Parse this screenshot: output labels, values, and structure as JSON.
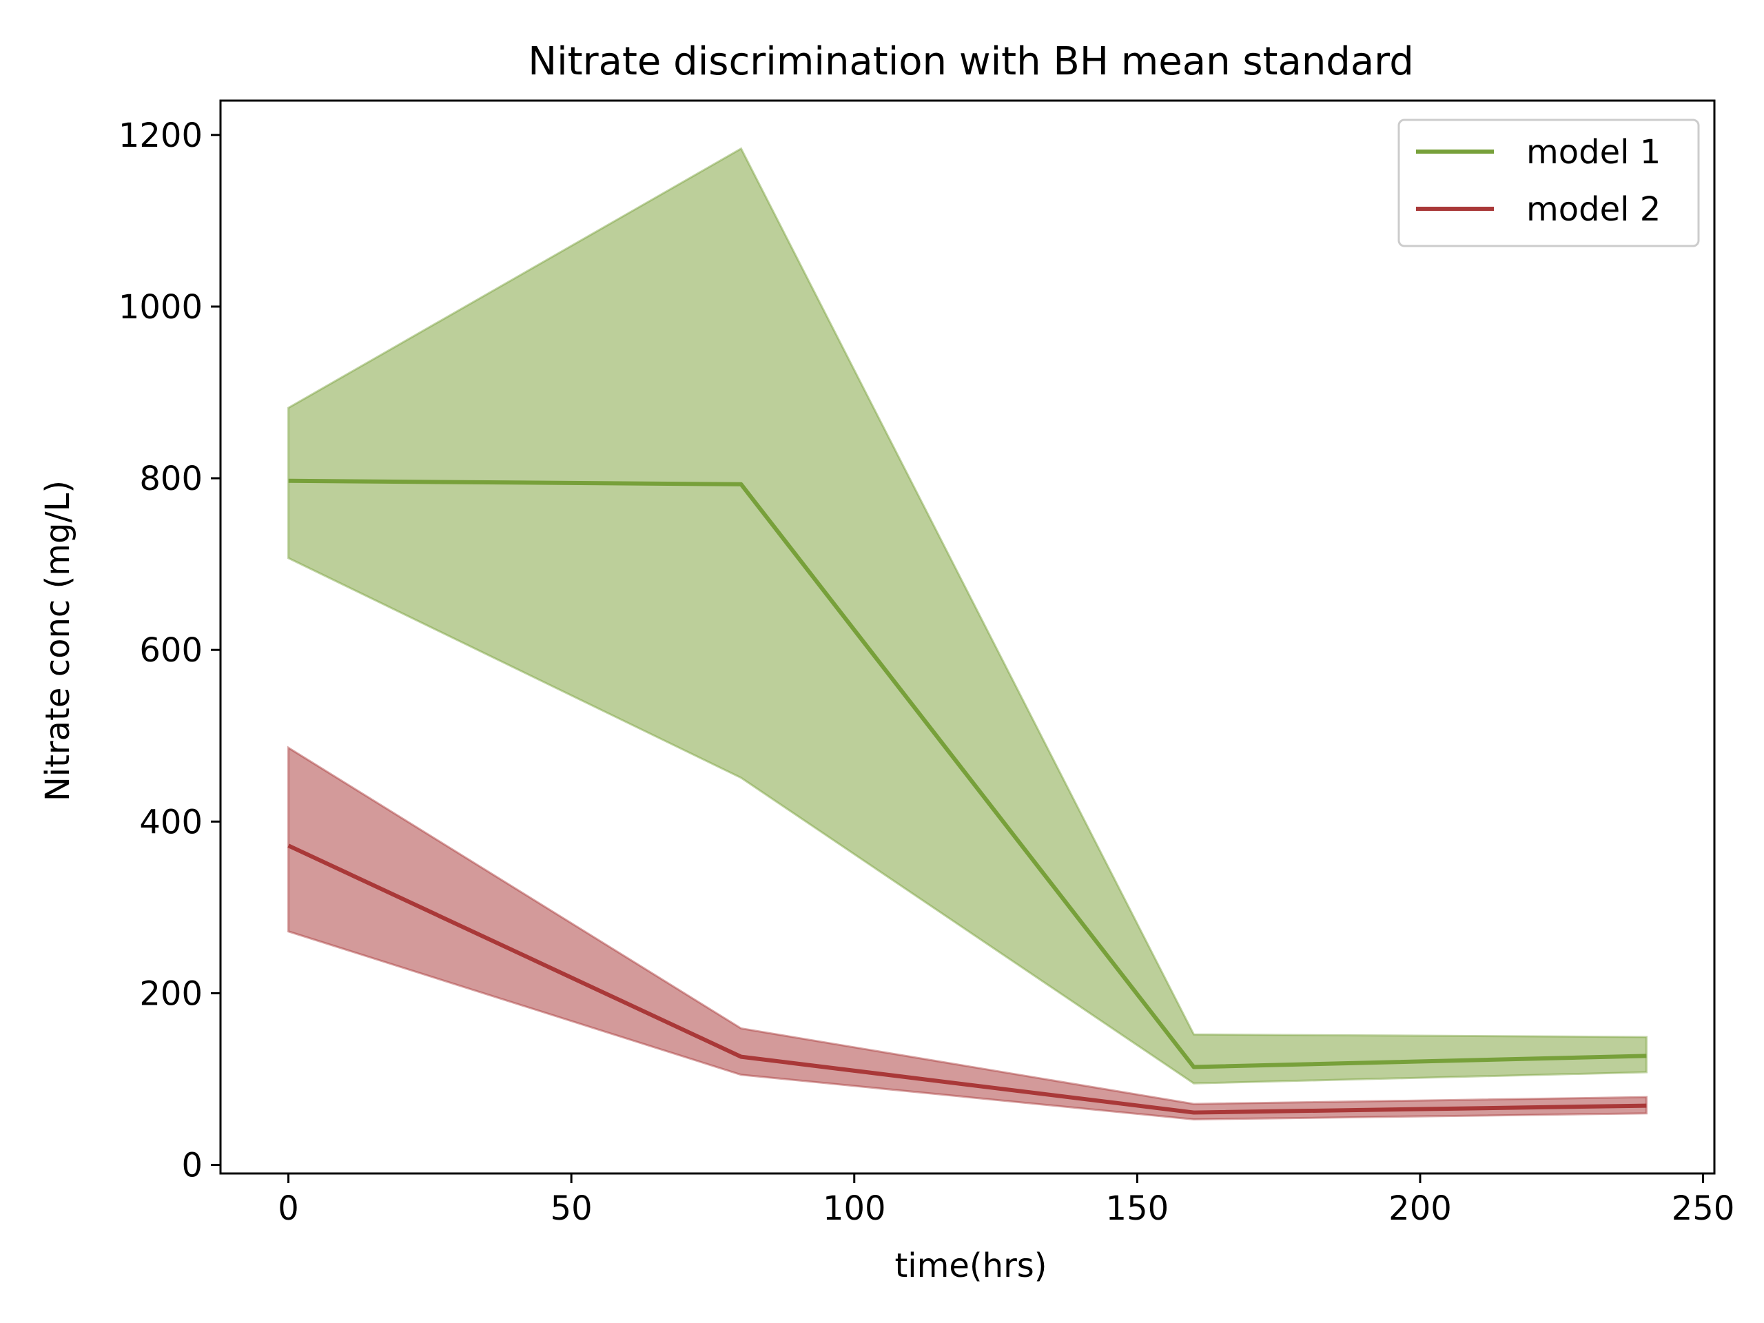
{
  "chart_data": {
    "type": "line",
    "title": "Nitrate discrimination with BH mean standard",
    "xlabel": "time(hrs)",
    "ylabel": "Nitrate conc (mg/L)",
    "xlim": [
      -12,
      252
    ],
    "ylim": [
      -10,
      1240
    ],
    "xticks": [
      0,
      50,
      100,
      150,
      200,
      250
    ],
    "yticks": [
      0,
      200,
      400,
      600,
      800,
      1000,
      1200
    ],
    "grid": false,
    "legend_position": "top-right",
    "x": [
      0,
      80,
      160,
      240
    ],
    "series": [
      {
        "name": "model 1",
        "color": "#77a03a",
        "band_color": "#bccf9a",
        "mean": [
          797,
          793,
          114,
          127
        ],
        "lower": [
          707,
          451,
          95,
          108
        ],
        "upper": [
          882,
          1184,
          152,
          149
        ]
      },
      {
        "name": "model 2",
        "color": "#a93838",
        "band_color": "#d39a9a",
        "mean": [
          372,
          126,
          61,
          69
        ],
        "lower": [
          272,
          105,
          53,
          60
        ],
        "upper": [
          486,
          159,
          71,
          79
        ]
      }
    ]
  }
}
